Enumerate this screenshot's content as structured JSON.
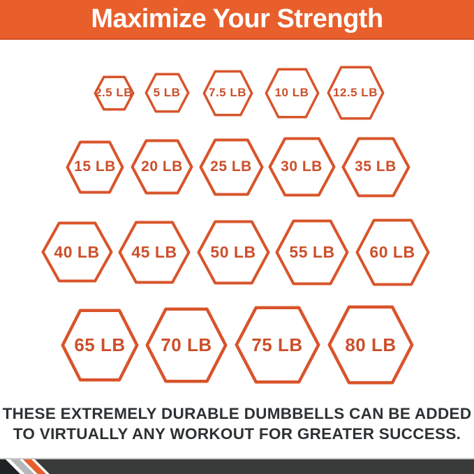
{
  "header": {
    "title": "Maximize Your Strength"
  },
  "weights": {
    "unit": "LB",
    "rows": [
      [
        "2.5 LB",
        "5 LB",
        "7.5 LB",
        "10 LB",
        "12.5 LB"
      ],
      [
        "15 LB",
        "20 LB",
        "25 LB",
        "30 LB",
        "35 LB"
      ],
      [
        "40 LB",
        "45 LB",
        "50 LB",
        "55 LB",
        "60 LB"
      ],
      [
        "65 LB",
        "70 LB",
        "75 LB",
        "80 LB"
      ]
    ],
    "values_lb": [
      2.5,
      5,
      7.5,
      10,
      12.5,
      15,
      20,
      25,
      30,
      35,
      40,
      45,
      50,
      55,
      60,
      65,
      70,
      75,
      80
    ]
  },
  "footer": {
    "line1": "THESE EXTREMELY DURABLE DUMBBELLS CAN BE ADDED",
    "line2": "TO VIRTUALLY ANY WORKOUT FOR GREATER SUCCESS."
  },
  "colors": {
    "banner_orange": "#E85F2C",
    "hexagon_stroke": "#D9542B",
    "hexagon_label": "#CC4F2B",
    "body_text": "#2D3133",
    "bottom_bar": "#383B3A",
    "stripe_silver": "#B5B7B9",
    "stripe_white": "#FFFFFF",
    "corner_black": "#1F2222"
  }
}
